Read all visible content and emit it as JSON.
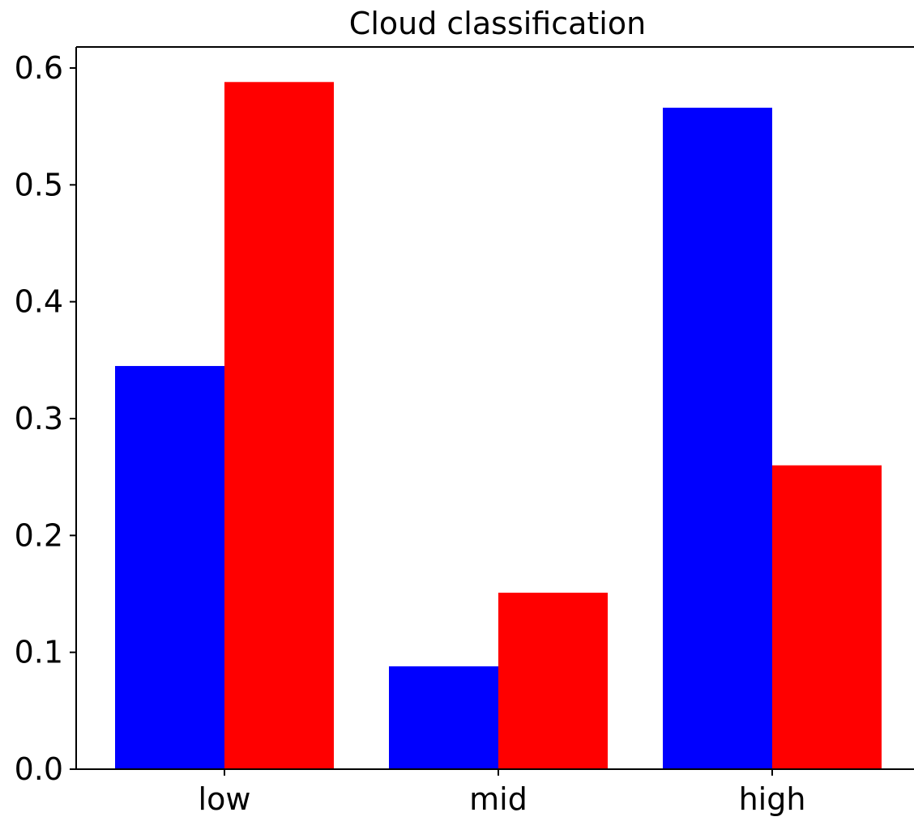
{
  "chart_data": {
    "type": "bar",
    "title": "Cloud classification",
    "xlabel": "",
    "ylabel": "",
    "categories": [
      "low",
      "mid",
      "high"
    ],
    "series": [
      {
        "values": [
          0.345,
          0.088,
          0.566
        ],
        "color": "#0000ff"
      },
      {
        "values": [
          0.588,
          0.151,
          0.26
        ],
        "color": "#ff0000"
      }
    ],
    "ylim": [
      0,
      0.618
    ],
    "yticks": [
      "0.0",
      "0.1",
      "0.2",
      "0.3",
      "0.4",
      "0.5",
      "0.6"
    ],
    "grid": false,
    "legend": "none"
  }
}
